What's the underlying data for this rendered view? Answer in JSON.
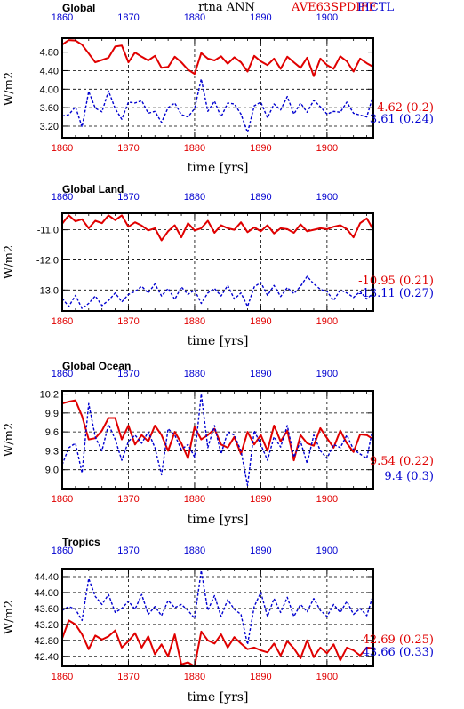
{
  "header": {
    "center_title": "rtna ANN",
    "case_label": "AVE63SPDIFF",
    "control_label": "PICTL"
  },
  "colors": {
    "case": "#e00000",
    "control": "#0000d0",
    "frame": "#000000",
    "grid": "#000000"
  },
  "chart_data": [
    {
      "type": "line",
      "title": "Global",
      "xlabel": "time [yrs]",
      "ylabel": "W/m2",
      "xlim": [
        1860,
        1907
      ],
      "ylim": [
        2.95,
        5.1
      ],
      "x_ticks": [
        1860,
        1870,
        1880,
        1890,
        1900
      ],
      "x_tick_labels": [
        "1860",
        "1870",
        "1880",
        "1890",
        "1900"
      ],
      "y_ticks": [
        3.2,
        3.6,
        4.0,
        4.4,
        4.8
      ],
      "y_tick_labels": [
        "3.20",
        "3.60",
        "4.00",
        "4.40",
        "4.80"
      ],
      "grid": true,
      "series": [
        {
          "style": "solid",
          "stats": "4.62 (0.2)",
          "values": [
            4.96,
            5.06,
            5.05,
            4.96,
            4.77,
            4.58,
            4.63,
            4.68,
            4.92,
            4.94,
            4.58,
            4.79,
            4.7,
            4.62,
            4.72,
            4.46,
            4.48,
            4.7,
            4.58,
            4.42,
            4.33,
            4.78,
            4.66,
            4.62,
            4.71,
            4.55,
            4.69,
            4.58,
            4.38,
            4.72,
            4.6,
            4.52,
            4.66,
            4.44,
            4.7,
            4.58,
            4.46,
            4.68,
            4.28,
            4.66,
            4.52,
            4.44,
            4.71,
            4.6,
            4.38,
            4.66,
            4.56,
            4.48
          ]
        },
        {
          "style": "dashed",
          "stats": "3.61 (0.24)",
          "values": [
            3.42,
            3.45,
            3.62,
            3.18,
            3.95,
            3.59,
            3.51,
            3.96,
            3.58,
            3.35,
            3.72,
            3.7,
            3.75,
            3.48,
            3.52,
            3.28,
            3.6,
            3.7,
            3.45,
            3.4,
            3.58,
            4.22,
            3.52,
            3.74,
            3.4,
            3.7,
            3.68,
            3.46,
            3.06,
            3.64,
            3.72,
            3.38,
            3.68,
            3.55,
            3.84,
            3.46,
            3.7,
            3.5,
            3.76,
            3.62,
            3.46,
            3.52,
            3.5,
            3.72,
            3.48,
            3.44,
            3.4,
            3.88
          ]
        }
      ]
    },
    {
      "type": "line",
      "title": "Global Land",
      "xlabel": "time [yrs]",
      "ylabel": "W/m2",
      "xlim": [
        1860,
        1907
      ],
      "ylim": [
        -13.7,
        -10.45
      ],
      "x_ticks": [
        1860,
        1870,
        1880,
        1890,
        1900
      ],
      "x_tick_labels": [
        "1860",
        "1870",
        "1880",
        "1890",
        "1900"
      ],
      "y_ticks": [
        -13.0,
        -12.0,
        -11.0
      ],
      "y_tick_labels": [
        "-13.0",
        "-12.0",
        "-11.0"
      ],
      "grid": true,
      "series": [
        {
          "style": "solid",
          "stats": "-10.95 (0.21)",
          "values": [
            -10.8,
            -10.52,
            -10.72,
            -10.65,
            -10.95,
            -10.7,
            -10.78,
            -10.52,
            -10.68,
            -10.52,
            -10.9,
            -10.75,
            -10.86,
            -11.02,
            -10.95,
            -11.35,
            -11.05,
            -10.85,
            -11.25,
            -10.78,
            -11.02,
            -10.95,
            -10.7,
            -11.1,
            -10.85,
            -10.95,
            -11.0,
            -10.75,
            -11.08,
            -10.92,
            -11.05,
            -10.85,
            -11.12,
            -10.95,
            -10.98,
            -11.1,
            -10.82,
            -11.05,
            -11.0,
            -10.95,
            -10.98,
            -10.9,
            -10.85,
            -10.98,
            -11.25,
            -10.78,
            -10.62,
            -11.0
          ]
        },
        {
          "style": "dashed",
          "stats": "-13.11 (0.27)",
          "values": [
            -13.28,
            -13.55,
            -13.18,
            -13.62,
            -13.45,
            -13.2,
            -13.52,
            -13.35,
            -13.1,
            -13.4,
            -13.15,
            -13.05,
            -12.88,
            -13.1,
            -12.8,
            -13.2,
            -12.95,
            -13.32,
            -12.9,
            -13.15,
            -13.0,
            -13.45,
            -13.1,
            -12.95,
            -13.2,
            -12.85,
            -13.3,
            -13.1,
            -13.55,
            -12.9,
            -12.75,
            -13.18,
            -12.85,
            -13.22,
            -12.92,
            -13.12,
            -12.88,
            -12.55,
            -12.8,
            -12.98,
            -13.05,
            -13.35,
            -13.0,
            -13.1,
            -13.25,
            -13.05,
            -13.3,
            -13.1
          ]
        }
      ]
    },
    {
      "type": "line",
      "title": "Global Ocean",
      "xlabel": "time [yrs]",
      "ylabel": "W/m2",
      "xlim": [
        1860,
        1907
      ],
      "ylim": [
        8.7,
        10.25
      ],
      "x_ticks": [
        1860,
        1870,
        1880,
        1890,
        1900
      ],
      "x_tick_labels": [
        "1860",
        "1870",
        "1880",
        "1890",
        "1900"
      ],
      "y_ticks": [
        9.0,
        9.3,
        9.6,
        9.9,
        10.2
      ],
      "y_tick_labels": [
        "9.0",
        "9.3",
        "9.6",
        "9.9",
        "10.2"
      ],
      "grid": true,
      "series": [
        {
          "style": "solid",
          "stats": "9.54 (0.22)",
          "values": [
            10.05,
            10.08,
            10.1,
            9.85,
            9.48,
            9.5,
            9.62,
            9.82,
            9.82,
            9.48,
            9.7,
            9.4,
            9.55,
            9.45,
            9.7,
            9.55,
            9.3,
            9.6,
            9.42,
            9.18,
            9.68,
            9.48,
            9.55,
            9.65,
            9.4,
            9.35,
            9.52,
            9.25,
            9.6,
            9.4,
            9.55,
            9.3,
            9.7,
            9.45,
            9.62,
            9.15,
            9.55,
            9.42,
            9.38,
            9.66,
            9.5,
            9.35,
            9.62,
            9.42,
            9.28,
            9.56,
            9.55,
            9.48
          ]
        },
        {
          "style": "dashed",
          "stats": "9.4 (0.3)",
          "values": [
            9.08,
            9.35,
            9.42,
            8.95,
            10.05,
            9.52,
            9.3,
            9.72,
            9.48,
            9.15,
            9.45,
            9.55,
            9.42,
            9.6,
            9.35,
            8.92,
            9.65,
            9.55,
            9.32,
            9.4,
            9.2,
            10.2,
            9.35,
            9.7,
            9.25,
            9.6,
            9.55,
            9.3,
            8.75,
            9.62,
            9.4,
            9.15,
            9.52,
            9.36,
            9.7,
            9.2,
            9.45,
            9.1,
            9.55,
            9.3,
            9.18,
            9.4,
            9.35,
            9.55,
            9.32,
            9.25,
            9.18,
            9.7
          ]
        }
      ]
    },
    {
      "type": "line",
      "title": "Tropics",
      "xlabel": "time [yrs]",
      "ylabel": "W/m2",
      "xlim": [
        1860,
        1907
      ],
      "ylim": [
        42.15,
        44.6
      ],
      "x_ticks": [
        1860,
        1870,
        1880,
        1890,
        1900
      ],
      "x_tick_labels": [
        "1860",
        "1870",
        "1880",
        "1890",
        "1900"
      ],
      "y_ticks": [
        42.4,
        42.8,
        43.2,
        43.6,
        44.0,
        44.4
      ],
      "y_tick_labels": [
        "42.40",
        "42.80",
        "43.20",
        "43.60",
        "44.00",
        "44.40"
      ],
      "grid": true,
      "series": [
        {
          "style": "solid",
          "stats": "42.69 (0.25)",
          "values": [
            42.85,
            43.3,
            43.2,
            42.95,
            42.58,
            42.92,
            42.82,
            42.9,
            43.05,
            42.62,
            42.78,
            42.98,
            42.62,
            42.9,
            42.45,
            42.7,
            42.4,
            42.95,
            42.2,
            42.25,
            42.1,
            43.02,
            42.8,
            42.72,
            42.95,
            42.62,
            42.88,
            42.72,
            42.58,
            42.62,
            42.55,
            42.5,
            42.72,
            42.42,
            42.78,
            42.6,
            42.35,
            42.8,
            42.38,
            42.62,
            42.48,
            42.7,
            42.3,
            42.62,
            42.55,
            42.42,
            42.62,
            42.6
          ]
        },
        {
          "style": "dashed",
          "stats": "43.66 (0.33)",
          "values": [
            43.55,
            43.65,
            43.58,
            43.3,
            44.35,
            43.9,
            43.7,
            43.95,
            43.5,
            43.6,
            43.78,
            43.58,
            43.95,
            43.45,
            43.65,
            43.42,
            43.8,
            43.62,
            43.7,
            43.55,
            43.35,
            44.55,
            43.55,
            43.92,
            43.4,
            43.82,
            43.58,
            43.45,
            42.7,
            43.65,
            44.0,
            43.4,
            43.85,
            43.5,
            43.88,
            43.4,
            43.7,
            43.52,
            43.85,
            43.55,
            43.4,
            43.7,
            43.5,
            43.78,
            43.45,
            43.6,
            43.42,
            43.95
          ]
        }
      ]
    }
  ]
}
